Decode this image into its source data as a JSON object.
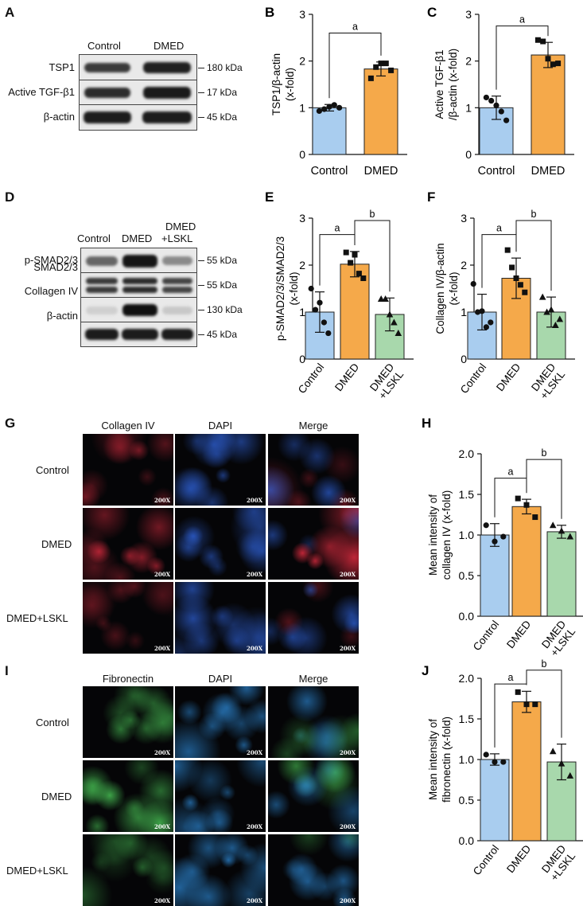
{
  "panels": {
    "A": {
      "letter": "A",
      "columns": [
        "Control",
        "DMED"
      ],
      "rows": [
        {
          "label": "TSP1",
          "kda": "180 kDa"
        },
        {
          "label": "Active TGF-β1",
          "kda": "17 kDa"
        },
        {
          "label": "β-actin",
          "kda": "45 kDa"
        }
      ]
    },
    "D": {
      "letter": "D",
      "columns": [
        "Control",
        "DMED",
        "DMED",
        "+LSKL"
      ],
      "rows": [
        {
          "label": "p-SMAD2/3",
          "kda": "55 kDa"
        },
        {
          "label": "SMAD2/3",
          "kda": "55 kDa"
        },
        {
          "label": "Collagen IV",
          "kda": "130 kDa"
        },
        {
          "label": "β-actin",
          "kda": "45 kDa"
        }
      ]
    },
    "G": {
      "letter": "G",
      "columns": [
        "Collagen IV",
        "DAPI",
        "Merge"
      ],
      "rows": [
        "Control",
        "DMED",
        "DMED+LSKL"
      ],
      "badge": "200X",
      "colors": {
        "stain": "#c8283a",
        "dapi": "#2f62d8"
      }
    },
    "I": {
      "letter": "I",
      "columns": [
        "Fibronectin",
        "DAPI",
        "Merge"
      ],
      "rows": [
        "Control",
        "DMED",
        "DMED+LSKL"
      ],
      "badge": "200X",
      "colors": {
        "stain": "#3fa84a",
        "dapi": "#2f8fe0"
      }
    }
  },
  "colors": {
    "control": "#a9cdef",
    "dmed": "#f5a94a",
    "lskl": "#a8d8ac"
  },
  "chart_data": [
    {
      "letter": "B",
      "type": "bar",
      "ylabel": [
        "TSP1/β-actin",
        "(x-fold)"
      ],
      "categories": [
        "Control",
        "DMED"
      ],
      "values": [
        1.0,
        1.83
      ],
      "errors": [
        0.07,
        0.15
      ],
      "points": [
        [
          0.93,
          0.97,
          1.02,
          1.06,
          1.0
        ],
        [
          1.63,
          1.87,
          1.95,
          1.95,
          1.8
        ]
      ],
      "markers": [
        "circle",
        "square"
      ],
      "ylim": [
        0,
        3
      ],
      "yticks": [
        0,
        1,
        2,
        3
      ],
      "sig": [
        {
          "from": 0,
          "to": 1,
          "y": 2.6,
          "label": "a"
        }
      ]
    },
    {
      "letter": "C",
      "type": "bar",
      "ylabel": [
        "Active TGF-β1",
        "/β-actin (x-fold)"
      ],
      "categories": [
        "Control",
        "DMED"
      ],
      "values": [
        1.0,
        2.13
      ],
      "errors": [
        0.25,
        0.27
      ],
      "points": [
        [
          1.22,
          1.15,
          1.05,
          0.92,
          0.73
        ],
        [
          2.45,
          2.42,
          2.05,
          1.93,
          1.95
        ]
      ],
      "markers": [
        "circle",
        "square"
      ],
      "ylim": [
        0,
        3
      ],
      "yticks": [
        0,
        1,
        2,
        3
      ],
      "sig": [
        {
          "from": 0,
          "to": 1,
          "y": 2.75,
          "label": "a"
        }
      ]
    },
    {
      "letter": "E",
      "type": "bar",
      "ylabel": [
        "p-SMAD2/3/SMAD2/3",
        "(x-fold)"
      ],
      "categories": [
        "Control",
        "DMED",
        "DMED\n+LSKL"
      ],
      "values": [
        1.0,
        2.02,
        0.95
      ],
      "errors": [
        0.43,
        0.27,
        0.35
      ],
      "points": [
        [
          1.5,
          1.05,
          1.2,
          0.78,
          0.55
        ],
        [
          2.27,
          2.05,
          2.22,
          1.82,
          1.72
        ],
        [
          1.28,
          1.28,
          0.95,
          0.78,
          0.55
        ]
      ],
      "markers": [
        "circle",
        "square",
        "triangle"
      ],
      "ylim": [
        0,
        3
      ],
      "yticks": [
        0,
        1,
        2,
        3
      ],
      "sig": [
        {
          "from": 0,
          "to": 1,
          "y": 2.65,
          "label": "a"
        },
        {
          "from": 1,
          "to": 2,
          "y": 2.95,
          "label": "b"
        }
      ]
    },
    {
      "letter": "F",
      "type": "bar",
      "ylabel": [
        "Collagen IV/β-actin",
        "(x-fold)"
      ],
      "categories": [
        "Control",
        "DMED",
        "DMED\n+LSKL"
      ],
      "values": [
        1.0,
        1.72,
        1.0
      ],
      "errors": [
        0.38,
        0.43,
        0.32
      ],
      "points": [
        [
          1.6,
          1.0,
          1.02,
          0.68,
          0.78
        ],
        [
          2.32,
          1.95,
          1.72,
          1.58,
          1.42
        ],
        [
          1.32,
          1.0,
          1.05,
          0.72,
          0.85
        ]
      ],
      "markers": [
        "circle",
        "square",
        "triangle"
      ],
      "ylim": [
        0,
        3
      ],
      "yticks": [
        0,
        1,
        2,
        3
      ],
      "sig": [
        {
          "from": 0,
          "to": 1,
          "y": 2.65,
          "label": "a"
        },
        {
          "from": 1,
          "to": 2,
          "y": 2.95,
          "label": "b"
        }
      ]
    },
    {
      "letter": "H",
      "type": "bar",
      "ylabel": [
        "Mean intensity of",
        "collagen IV (x-fold)"
      ],
      "categories": [
        "Control",
        "DMED",
        "DMED\n+LSKL"
      ],
      "values": [
        1.0,
        1.35,
        1.04
      ],
      "errors": [
        0.14,
        0.09,
        0.08
      ],
      "points": [
        [
          1.12,
          0.92,
          0.98
        ],
        [
          1.45,
          1.37,
          1.22
        ],
        [
          1.12,
          1.05,
          0.98
        ]
      ],
      "markers": [
        "circle",
        "square",
        "triangle"
      ],
      "ylim": [
        0,
        2.0
      ],
      "yticks": [
        0,
        0.5,
        1.0,
        1.5,
        2.0
      ],
      "sig": [
        {
          "from": 0,
          "to": 1,
          "y": 1.7,
          "label": "a"
        },
        {
          "from": 1,
          "to": 2,
          "y": 1.93,
          "label": "b"
        }
      ]
    },
    {
      "letter": "J",
      "type": "bar",
      "ylabel": [
        "Mean intensity of",
        "fibronectin (x-fold)"
      ],
      "categories": [
        "Control",
        "DMED",
        "DMED\n+LSKL"
      ],
      "values": [
        1.0,
        1.71,
        0.97
      ],
      "errors": [
        0.07,
        0.13,
        0.22
      ],
      "points": [
        [
          1.06,
          0.97,
          0.97
        ],
        [
          1.83,
          1.68,
          1.68
        ],
        [
          1.1,
          0.95,
          0.8
        ]
      ],
      "markers": [
        "circle",
        "square",
        "triangle"
      ],
      "ylim": [
        0,
        2.0
      ],
      "yticks": [
        0,
        0.5,
        1.0,
        1.5,
        2.0
      ],
      "sig": [
        {
          "from": 0,
          "to": 1,
          "y": 1.93,
          "label": "a"
        },
        {
          "from": 1,
          "to": 2,
          "y": 2.1,
          "label": "b"
        }
      ]
    }
  ]
}
